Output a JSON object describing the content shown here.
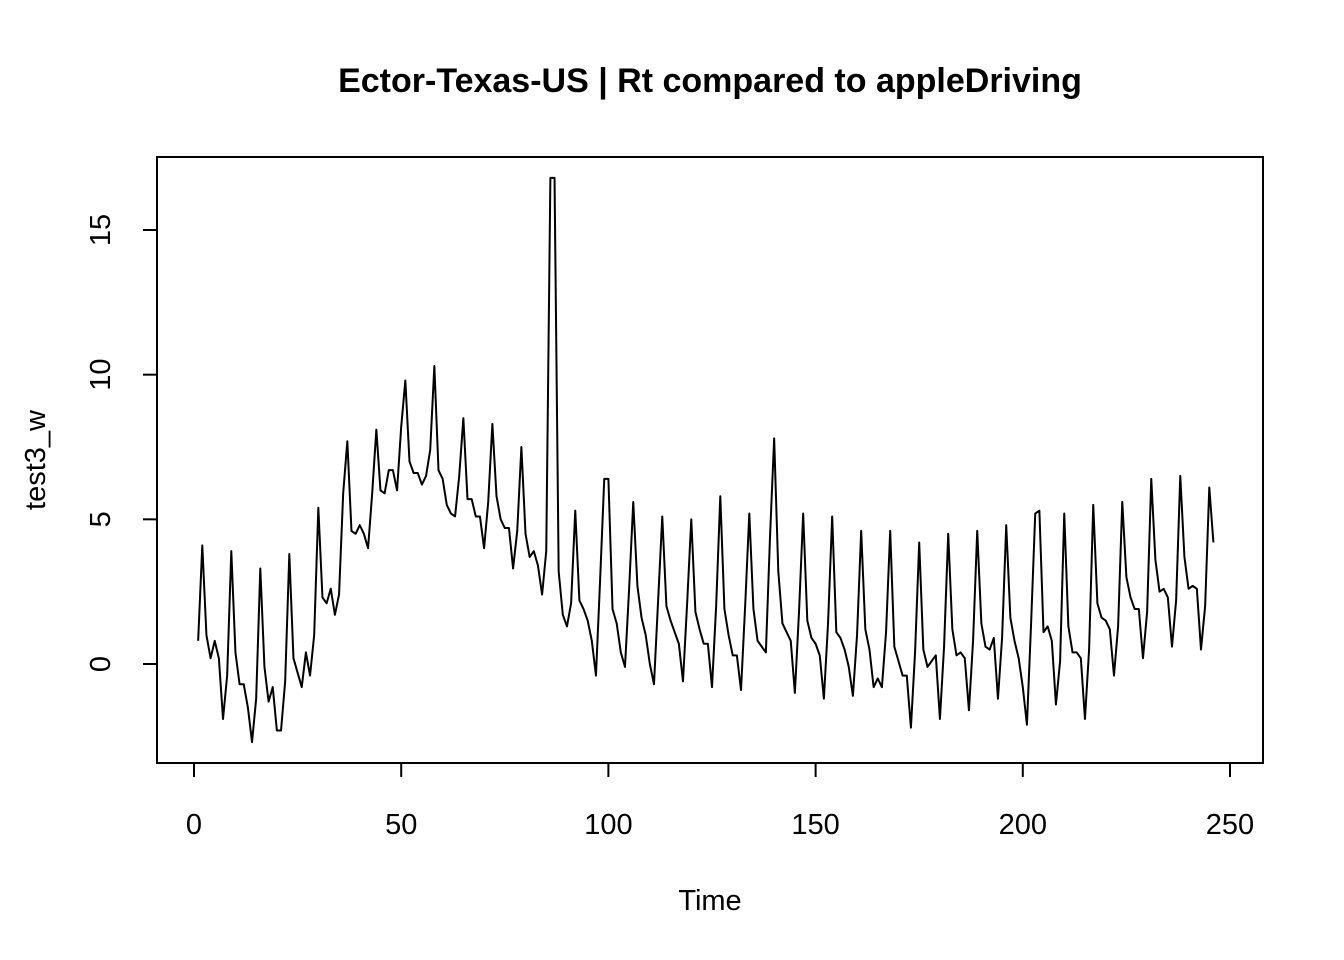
{
  "chart_data": {
    "type": "line",
    "title": "Ector-Texas-US | Rt compared to appleDriving",
    "xlabel": "Time",
    "ylabel": "test3_w",
    "xlim": [
      0,
      250
    ],
    "ylim": [
      -3.4,
      17.6
    ],
    "xticks": [
      0,
      50,
      100,
      150,
      200,
      250
    ],
    "xtick_labels": [
      "0",
      "50",
      "100",
      "150",
      "200",
      "250"
    ],
    "yticks": [
      0,
      5,
      10,
      15
    ],
    "ytick_labels": [
      "0",
      "5",
      "10",
      "15"
    ],
    "grid": false,
    "legend": false,
    "line_color": "#000000",
    "series": [
      {
        "x_start": 1,
        "values": [
          0.8,
          4.1,
          1.0,
          0.2,
          0.8,
          0.2,
          -1.9,
          -0.4,
          3.9,
          0.4,
          -0.7,
          -0.7,
          -1.5,
          -2.7,
          -1.2,
          3.3,
          -0.1,
          -1.3,
          -0.8,
          -2.3,
          -2.3,
          -0.6,
          3.8,
          0.2,
          -0.3,
          -0.8,
          0.4,
          -0.4,
          1.0,
          5.4,
          2.3,
          2.1,
          2.6,
          1.7,
          2.4,
          5.9,
          7.7,
          4.6,
          4.5,
          4.8,
          4.5,
          4.0,
          5.9,
          8.1,
          6.0,
          5.9,
          6.7,
          6.7,
          6.0,
          8.2,
          9.8,
          7.0,
          6.6,
          6.6,
          6.2,
          6.5,
          7.4,
          10.3,
          6.7,
          6.4,
          5.5,
          5.2,
          5.1,
          6.5,
          8.5,
          5.7,
          5.7,
          5.1,
          5.1,
          4.0,
          5.6,
          8.3,
          5.8,
          5.0,
          4.7,
          4.7,
          3.3,
          4.6,
          7.5,
          4.5,
          3.7,
          3.9,
          3.4,
          2.4,
          3.9,
          16.8,
          16.8,
          3.2,
          1.7,
          1.3,
          2.1,
          5.3,
          2.2,
          1.9,
          1.5,
          0.8,
          -0.4,
          2.9,
          6.4,
          6.4,
          1.9,
          1.4,
          0.4,
          -0.1,
          2.6,
          5.6,
          2.7,
          1.6,
          1.0,
          0.0,
          -0.7,
          2.2,
          5.1,
          2.0,
          1.5,
          1.1,
          0.7,
          -0.6,
          2.1,
          5.0,
          1.8,
          1.2,
          0.7,
          0.7,
          -0.8,
          2.0,
          5.8,
          1.9,
          1.0,
          0.3,
          0.3,
          -0.9,
          2.0,
          5.2,
          1.9,
          0.8,
          0.6,
          0.4,
          4.4,
          7.8,
          3.2,
          1.4,
          1.1,
          0.8,
          -1.0,
          1.8,
          5.2,
          1.5,
          0.9,
          0.7,
          0.3,
          -1.2,
          1.4,
          5.1,
          1.1,
          0.9,
          0.5,
          -0.1,
          -1.1,
          1.0,
          4.6,
          1.2,
          0.5,
          -0.8,
          -0.5,
          -0.8,
          1.1,
          4.6,
          0.6,
          0.1,
          -0.4,
          -0.4,
          -2.2,
          0.4,
          4.2,
          0.5,
          -0.1,
          0.1,
          0.3,
          -1.9,
          0.6,
          4.5,
          1.2,
          0.3,
          0.4,
          0.2,
          -1.6,
          0.8,
          4.6,
          1.4,
          0.6,
          0.5,
          0.9,
          -1.2,
          0.9,
          4.8,
          1.6,
          0.8,
          0.2,
          -0.8,
          -2.1,
          1.4,
          5.2,
          5.3,
          1.1,
          1.3,
          0.8,
          -1.4,
          0.1,
          5.2,
          1.3,
          0.4,
          0.4,
          0.2,
          -1.9,
          0.5,
          5.5,
          2.1,
          1.6,
          1.5,
          1.2,
          -0.4,
          1.3,
          5.6,
          3.0,
          2.3,
          1.9,
          1.9,
          0.2,
          1.8,
          6.4,
          3.6,
          2.5,
          2.6,
          2.3,
          0.6,
          2.2,
          6.5,
          3.7,
          2.6,
          2.7,
          2.6,
          0.5,
          2.0,
          6.1,
          4.2
        ]
      }
    ]
  }
}
